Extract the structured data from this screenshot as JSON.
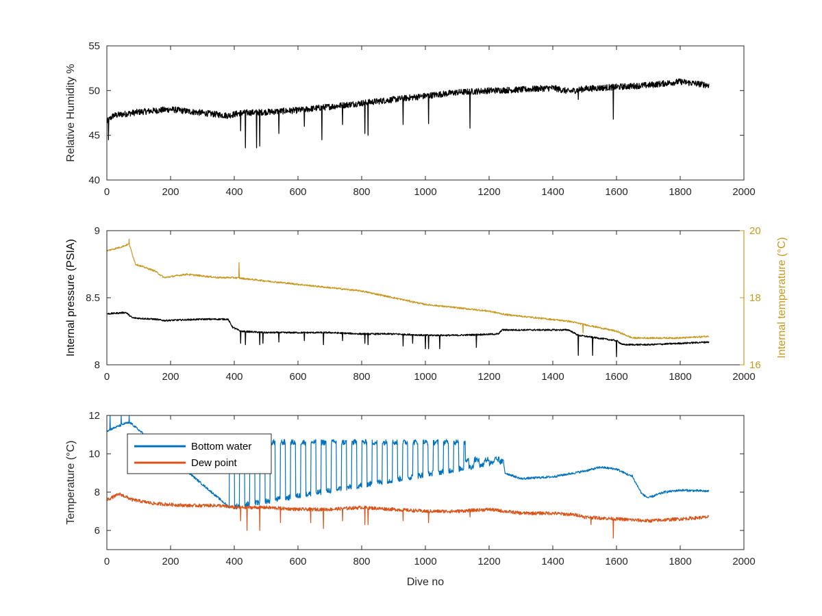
{
  "colors": {
    "axis": "#262626",
    "black_series": "#000000",
    "internal_temperature": "#C8981E",
    "bottom_water": "#0072BD",
    "dew_point": "#D95319"
  },
  "chart_data": [
    {
      "type": "line",
      "xlabel": "",
      "ylabel": "Relative Humidity %",
      "xlim": [
        0,
        2000
      ],
      "ylim": [
        40,
        55
      ],
      "xticks": [
        "0",
        "200",
        "400",
        "600",
        "800",
        "1000",
        "1200",
        "1400",
        "1600",
        "1800",
        "2000"
      ],
      "yticks": [
        "40",
        "45",
        "50",
        "55"
      ],
      "series": [
        {
          "color": "black_series",
          "noise": 0.7,
          "x": [
            0,
            20,
            100,
            200,
            300,
            380,
            420,
            500,
            600,
            700,
            800,
            900,
            1000,
            1100,
            1200,
            1300,
            1400,
            1450,
            1500,
            1600,
            1700,
            1800,
            1890
          ],
          "y": [
            46.5,
            47.2,
            47.6,
            47.9,
            47.5,
            47.2,
            47.5,
            47.6,
            47.8,
            48.2,
            48.6,
            49.0,
            49.4,
            49.8,
            50.0,
            50.1,
            50.3,
            49.9,
            50.2,
            50.4,
            50.6,
            51.0,
            50.6
          ],
          "spikes": [
            [
              5,
              44.5
            ],
            [
              420,
              45.5
            ],
            [
              435,
              43.6
            ],
            [
              470,
              43.6
            ],
            [
              480,
              43.8
            ],
            [
              540,
              45.2
            ],
            [
              620,
              46.0
            ],
            [
              675,
              44.5
            ],
            [
              740,
              46.2
            ],
            [
              810,
              45.2
            ],
            [
              820,
              45.0
            ],
            [
              930,
              46.2
            ],
            [
              1010,
              46.3
            ],
            [
              1140,
              45.8
            ],
            [
              1480,
              49.0
            ],
            [
              1590,
              46.8
            ]
          ]
        }
      ]
    },
    {
      "type": "line",
      "xlabel": "",
      "ylabel": "Internal pressure (PSIA)",
      "y2label": "Internal temperature (°C)",
      "xlim": [
        0,
        2000
      ],
      "ylim": [
        8,
        9
      ],
      "y2lim": [
        16,
        20
      ],
      "xticks": [
        "0",
        "200",
        "400",
        "600",
        "800",
        "1000",
        "1200",
        "1400",
        "1600",
        "1800",
        "2000"
      ],
      "yticks": [
        "8",
        "8.5",
        "9"
      ],
      "y2ticks": [
        "16",
        "18",
        "20"
      ],
      "series": [
        {
          "color": "black_series",
          "axis": "left",
          "noise": 0.012,
          "x": [
            0,
            60,
            80,
            150,
            180,
            300,
            380,
            395,
            420,
            500,
            600,
            700,
            800,
            900,
            1000,
            1100,
            1230,
            1240,
            1450,
            1480,
            1600,
            1620,
            1700,
            1800,
            1890
          ],
          "y": [
            8.38,
            8.39,
            8.35,
            8.34,
            8.33,
            8.34,
            8.34,
            8.28,
            8.25,
            8.24,
            8.24,
            8.24,
            8.23,
            8.23,
            8.22,
            8.22,
            8.23,
            8.26,
            8.26,
            8.22,
            8.18,
            8.15,
            8.15,
            8.16,
            8.17
          ],
          "spikes": [
            [
              420,
              8.16
            ],
            [
              435,
              8.15
            ],
            [
              480,
              8.15
            ],
            [
              490,
              8.16
            ],
            [
              540,
              8.17
            ],
            [
              620,
              8.18
            ],
            [
              680,
              8.15
            ],
            [
              740,
              8.18
            ],
            [
              810,
              8.16
            ],
            [
              820,
              8.15
            ],
            [
              930,
              8.14
            ],
            [
              960,
              8.16
            ],
            [
              1000,
              8.12
            ],
            [
              1010,
              8.12
            ],
            [
              1045,
              8.12
            ],
            [
              1160,
              8.13
            ],
            [
              1480,
              8.07
            ],
            [
              1525,
              8.07
            ],
            [
              1600,
              8.06
            ]
          ]
        },
        {
          "color": "internal_temperature",
          "axis": "right",
          "noise": 0.05,
          "x": [
            0,
            40,
            70,
            90,
            150,
            180,
            250,
            350,
            400,
            500,
            600,
            700,
            800,
            900,
            1000,
            1100,
            1200,
            1250,
            1350,
            1450,
            1500,
            1600,
            1650,
            1700,
            1800,
            1890
          ],
          "y": [
            19.4,
            19.5,
            19.6,
            19.0,
            18.8,
            18.6,
            18.7,
            18.6,
            18.6,
            18.5,
            18.4,
            18.3,
            18.2,
            18.0,
            17.8,
            17.7,
            17.6,
            17.5,
            17.4,
            17.3,
            17.2,
            17.0,
            16.8,
            16.8,
            16.8,
            16.85
          ],
          "spikes": [
            [
              70,
              19.75
            ],
            [
              415,
              19.05
            ],
            [
              1495,
              16.95
            ]
          ]
        }
      ]
    },
    {
      "type": "line",
      "xlabel": "Dive no",
      "ylabel": "Temperature (°C)",
      "xlim": [
        0,
        2000
      ],
      "ylim": [
        5,
        12
      ],
      "xticks": [
        "0",
        "200",
        "400",
        "600",
        "800",
        "1000",
        "1200",
        "1400",
        "1600",
        "1800",
        "2000"
      ],
      "yticks": [
        "6",
        "8",
        "10",
        "12"
      ],
      "legend": {
        "placement": "top-left",
        "entries": [
          "Bottom water",
          "Dew point"
        ]
      },
      "series": [
        {
          "name": "Bottom water",
          "color": "bottom_water",
          "noise": 0.12,
          "oscillation": {
            "from": 385,
            "to": 1245,
            "period": 32,
            "high": 10.6,
            "low": 7.2
          },
          "x": [
            0,
            30,
            60,
            75,
            385,
            1245,
            1250,
            1300,
            1400,
            1500,
            1550,
            1600,
            1650,
            1680,
            1700,
            1750,
            1800,
            1890
          ],
          "y": [
            11.2,
            11.4,
            11.6,
            11.6,
            7.2,
            9.6,
            9.0,
            8.7,
            8.8,
            9.1,
            9.3,
            9.2,
            8.8,
            7.9,
            7.7,
            8.0,
            8.1,
            8.05
          ],
          "spikes": [
            [
              10,
              12.0
            ],
            [
              45,
              12.0
            ],
            [
              70,
              12.0
            ],
            [
              1650,
              8.9
            ]
          ]
        },
        {
          "name": "Dew point",
          "color": "dew_point",
          "noise": 0.18,
          "x": [
            0,
            40,
            80,
            150,
            250,
            350,
            400,
            500,
            600,
            700,
            800,
            900,
            1000,
            1100,
            1200,
            1300,
            1400,
            1480,
            1500,
            1600,
            1700,
            1800,
            1890
          ],
          "y": [
            7.6,
            7.9,
            7.6,
            7.4,
            7.3,
            7.3,
            7.2,
            7.2,
            7.1,
            7.1,
            7.2,
            7.1,
            7.0,
            7.0,
            7.1,
            6.9,
            6.9,
            6.8,
            6.7,
            6.6,
            6.5,
            6.6,
            6.7
          ],
          "spikes": [
            [
              420,
              6.5
            ],
            [
              440,
              6.0
            ],
            [
              480,
              6.0
            ],
            [
              545,
              6.4
            ],
            [
              640,
              6.4
            ],
            [
              680,
              6.1
            ],
            [
              740,
              6.5
            ],
            [
              810,
              6.3
            ],
            [
              820,
              6.3
            ],
            [
              930,
              6.5
            ],
            [
              1010,
              6.4
            ],
            [
              1140,
              6.7
            ],
            [
              1520,
              6.3
            ],
            [
              1590,
              5.6
            ]
          ]
        }
      ]
    }
  ]
}
